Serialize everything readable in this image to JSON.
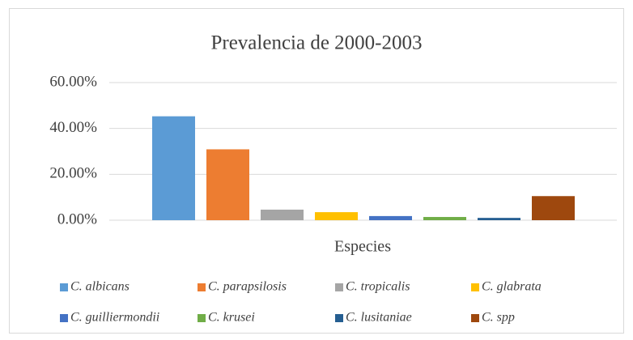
{
  "chart_data": {
    "type": "bar",
    "title": "Prevalencia de 2000-2003",
    "x_label": "Especies",
    "categories": [
      null
    ],
    "series": [
      {
        "name": "C. albicans",
        "color": "#5b9bd5",
        "values": [
          45.3
        ]
      },
      {
        "name": "C. parapsilosis",
        "color": "#ed7d31",
        "values": [
          30.9
        ]
      },
      {
        "name": "C. tropicalis",
        "color": "#a5a5a5",
        "values": [
          4.6
        ]
      },
      {
        "name": "C. glabrata",
        "color": "#ffc000",
        "values": [
          3.5
        ]
      },
      {
        "name": "C. guilliermondii",
        "color": "#4472c4",
        "values": [
          1.8
        ]
      },
      {
        "name": "C. krusei",
        "color": "#70ad47",
        "values": [
          1.4
        ]
      },
      {
        "name": "C. lusitaniae",
        "color": "#255e91",
        "values": [
          1.0
        ]
      },
      {
        "name": "C. spp",
        "color": "#9e480e",
        "values": [
          10.5
        ]
      }
    ],
    "ylim": [
      0,
      60
    ],
    "yticks": [
      {
        "value": 0,
        "label": "0.00%"
      },
      {
        "value": 20,
        "label": "20.00%"
      },
      {
        "value": 40,
        "label": "40.00%"
      },
      {
        "value": 60,
        "label": "60.00%"
      }
    ],
    "grid": true,
    "legend": "bottom"
  }
}
